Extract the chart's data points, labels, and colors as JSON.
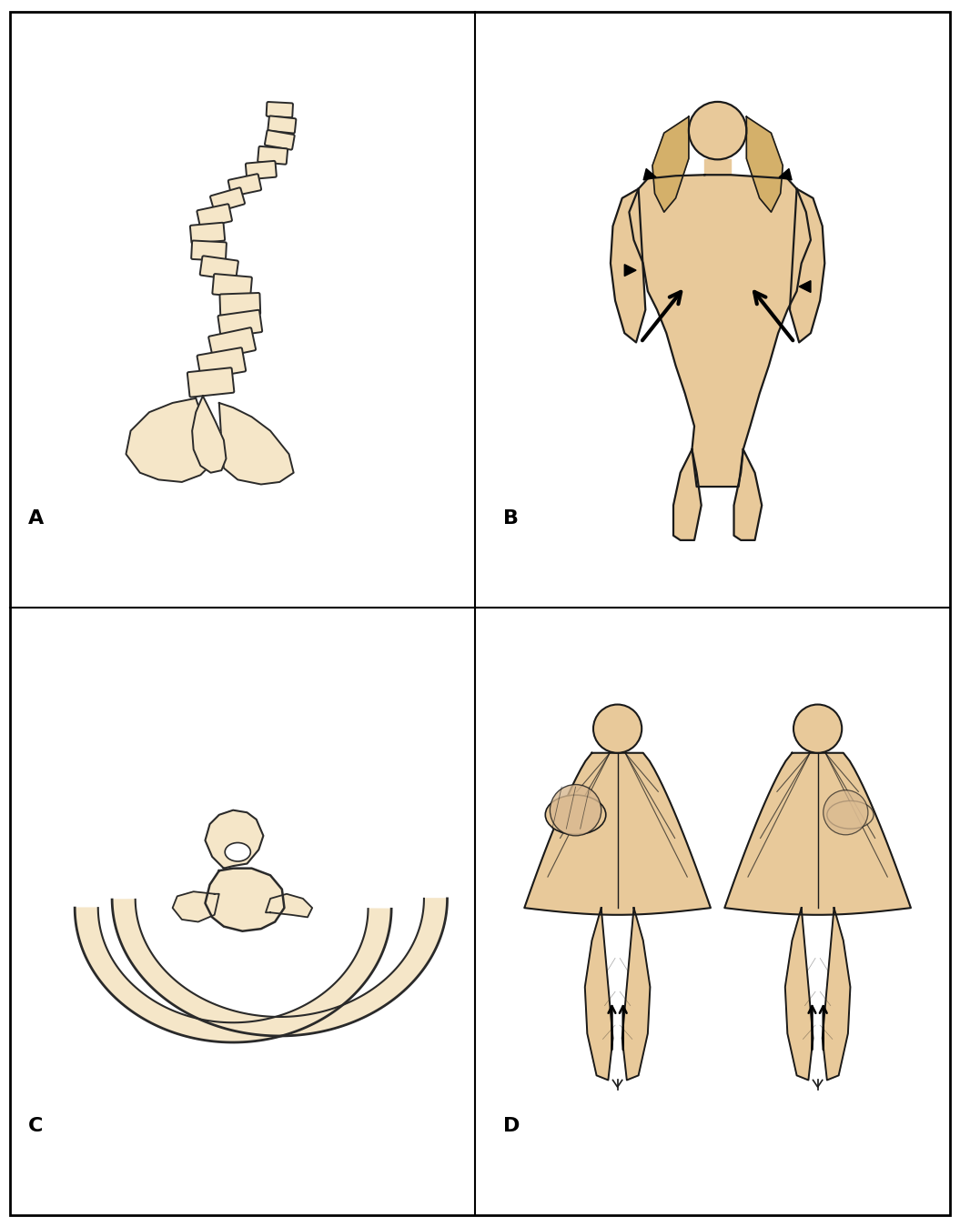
{
  "background_color": "#ffffff",
  "bone_fill": "#f5e6c8",
  "bone_stroke": "#2a2a2a",
  "skin_fill": "#e8c99a",
  "skin_stroke": "#1a1a1a",
  "hair_fill": "#d4b06a",
  "label_A": "A",
  "label_B": "B",
  "label_C": "C",
  "label_D": "D",
  "label_fontsize": 16
}
